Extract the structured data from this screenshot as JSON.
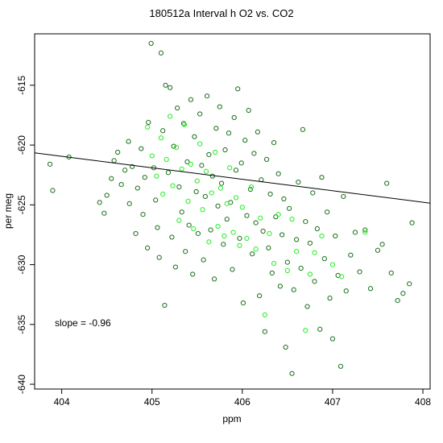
{
  "chart_data": {
    "type": "scatter",
    "title": "180512a   Interval h O2 vs. CO2",
    "xlabel": "ppm",
    "ylabel": "per meg",
    "xlim": [
      403.7,
      408.08
    ],
    "ylim": [
      -640.4,
      -610.7
    ],
    "xticks": [
      404,
      405,
      406,
      407,
      408
    ],
    "yticks": [
      -615,
      -620,
      -625,
      -630,
      -635,
      -640
    ],
    "annotation": "slope =  -0.96",
    "fit_line": {
      "slope": -0.96,
      "intercept": -233.1
    },
    "series": [
      {
        "color": "#1a6e1a",
        "marker": "open-circle",
        "points": [
          [
            403.87,
            -621.6
          ],
          [
            403.9,
            -623.8
          ],
          [
            404.08,
            -621.0
          ],
          [
            404.42,
            -624.8
          ],
          [
            404.47,
            -625.7
          ],
          [
            404.5,
            -624.2
          ],
          [
            404.55,
            -622.8
          ],
          [
            404.58,
            -621.3
          ],
          [
            404.62,
            -620.6
          ],
          [
            404.66,
            -623.3
          ],
          [
            404.7,
            -622.1
          ],
          [
            404.74,
            -619.7
          ],
          [
            404.75,
            -624.9
          ],
          [
            404.78,
            -621.8
          ],
          [
            404.82,
            -627.4
          ],
          [
            404.84,
            -623.6
          ],
          [
            404.88,
            -620.3
          ],
          [
            404.9,
            -625.8
          ],
          [
            404.92,
            -622.7
          ],
          [
            404.95,
            -628.6
          ],
          [
            404.96,
            -618.1
          ],
          [
            404.99,
            -611.5
          ],
          [
            405.02,
            -621.9
          ],
          [
            405.04,
            -624.6
          ],
          [
            405.06,
            -626.9
          ],
          [
            405.08,
            -629.4
          ],
          [
            405.1,
            -612.3
          ],
          [
            405.12,
            -618.8
          ],
          [
            405.14,
            -633.4
          ],
          [
            405.15,
            -615.0
          ],
          [
            405.18,
            -622.3
          ],
          [
            405.2,
            -615.2
          ],
          [
            405.22,
            -627.7
          ],
          [
            405.24,
            -620.1
          ],
          [
            405.26,
            -630.2
          ],
          [
            405.28,
            -616.9
          ],
          [
            405.3,
            -623.5
          ],
          [
            405.33,
            -625.6
          ],
          [
            405.35,
            -618.2
          ],
          [
            405.37,
            -628.9
          ],
          [
            405.39,
            -621.4
          ],
          [
            405.41,
            -626.7
          ],
          [
            405.43,
            -616.2
          ],
          [
            405.45,
            -630.8
          ],
          [
            405.47,
            -619.3
          ],
          [
            405.49,
            -623.9
          ],
          [
            405.51,
            -627.4
          ],
          [
            405.53,
            -617.4
          ],
          [
            405.55,
            -621.7
          ],
          [
            405.57,
            -629.6
          ],
          [
            405.59,
            -624.3
          ],
          [
            405.61,
            -615.9
          ],
          [
            405.63,
            -620.8
          ],
          [
            405.65,
            -627.1
          ],
          [
            405.67,
            -622.6
          ],
          [
            405.69,
            -631.2
          ],
          [
            405.71,
            -618.6
          ],
          [
            405.73,
            -625.1
          ],
          [
            405.75,
            -616.8
          ],
          [
            405.77,
            -623.2
          ],
          [
            405.79,
            -628.3
          ],
          [
            405.81,
            -620.4
          ],
          [
            405.83,
            -626.2
          ],
          [
            405.85,
            -619.0
          ],
          [
            405.87,
            -624.8
          ],
          [
            405.89,
            -630.4
          ],
          [
            405.91,
            -617.7
          ],
          [
            405.93,
            -622.1
          ],
          [
            405.95,
            -615.3
          ],
          [
            405.97,
            -627.8
          ],
          [
            405.99,
            -621.5
          ],
          [
            406.01,
            -633.2
          ],
          [
            406.03,
            -619.6
          ],
          [
            406.05,
            -625.9
          ],
          [
            406.07,
            -617.1
          ],
          [
            406.09,
            -623.7
          ],
          [
            406.11,
            -629.1
          ],
          [
            406.13,
            -620.7
          ],
          [
            406.15,
            -626.5
          ],
          [
            406.17,
            -618.9
          ],
          [
            406.19,
            -632.6
          ],
          [
            406.21,
            -622.9
          ],
          [
            406.23,
            -627.2
          ],
          [
            406.25,
            -635.6
          ],
          [
            406.27,
            -621.2
          ],
          [
            406.29,
            -628.6
          ],
          [
            406.31,
            -624.1
          ],
          [
            406.33,
            -630.7
          ],
          [
            406.35,
            -619.8
          ],
          [
            406.37,
            -626.0
          ],
          [
            406.4,
            -622.4
          ],
          [
            406.42,
            -631.8
          ],
          [
            406.44,
            -627.5
          ],
          [
            406.46,
            -624.5
          ],
          [
            406.48,
            -636.9
          ],
          [
            406.5,
            -629.8
          ],
          [
            406.52,
            -625.3
          ],
          [
            406.55,
            -639.1
          ],
          [
            406.57,
            -632.1
          ],
          [
            406.6,
            -627.9
          ],
          [
            406.62,
            -623.1
          ],
          [
            406.65,
            -630.3
          ],
          [
            406.67,
            -618.7
          ],
          [
            406.7,
            -626.4
          ],
          [
            406.72,
            -633.5
          ],
          [
            406.75,
            -628.2
          ],
          [
            406.78,
            -624.0
          ],
          [
            406.8,
            -631.4
          ],
          [
            406.83,
            -627.0
          ],
          [
            406.86,
            -635.4
          ],
          [
            406.88,
            -622.7
          ],
          [
            406.91,
            -629.5
          ],
          [
            406.94,
            -625.6
          ],
          [
            406.97,
            -632.8
          ],
          [
            407.0,
            -636.2
          ],
          [
            407.03,
            -627.6
          ],
          [
            407.06,
            -630.9
          ],
          [
            407.09,
            -638.5
          ],
          [
            407.12,
            -624.3
          ],
          [
            407.15,
            -632.2
          ],
          [
            407.2,
            -629.2
          ],
          [
            407.25,
            -627.3
          ],
          [
            407.3,
            -630.6
          ],
          [
            407.36,
            -627.1
          ],
          [
            407.42,
            -632.0
          ],
          [
            407.5,
            -628.8
          ],
          [
            407.55,
            -628.3
          ],
          [
            407.6,
            -623.2
          ],
          [
            407.65,
            -630.7
          ],
          [
            407.72,
            -633.0
          ],
          [
            407.78,
            -632.4
          ],
          [
            407.85,
            -631.6
          ],
          [
            407.88,
            -626.5
          ]
        ]
      },
      {
        "color": "#22ee22",
        "marker": "open-circle",
        "points": [
          [
            404.95,
            -618.5
          ],
          [
            405.0,
            -620.9
          ],
          [
            405.05,
            -622.6
          ],
          [
            405.1,
            -619.4
          ],
          [
            405.12,
            -624.1
          ],
          [
            405.16,
            -621.2
          ],
          [
            405.2,
            -617.6
          ],
          [
            405.23,
            -623.4
          ],
          [
            405.27,
            -620.2
          ],
          [
            405.3,
            -626.3
          ],
          [
            405.33,
            -622.0
          ],
          [
            405.36,
            -618.3
          ],
          [
            405.4,
            -624.7
          ],
          [
            405.43,
            -621.6
          ],
          [
            405.46,
            -627.0
          ],
          [
            405.5,
            -623.0
          ],
          [
            405.53,
            -619.9
          ],
          [
            405.56,
            -625.4
          ],
          [
            405.6,
            -622.2
          ],
          [
            405.63,
            -628.1
          ],
          [
            405.66,
            -624.0
          ],
          [
            405.7,
            -620.6
          ],
          [
            405.73,
            -626.8
          ],
          [
            405.76,
            -623.6
          ],
          [
            405.8,
            -627.6
          ],
          [
            405.83,
            -624.9
          ],
          [
            405.86,
            -621.9
          ],
          [
            405.9,
            -627.3
          ],
          [
            405.93,
            -624.4
          ],
          [
            405.97,
            -628.4
          ],
          [
            406.0,
            -625.2
          ],
          [
            406.05,
            -627.8
          ],
          [
            406.1,
            -623.5
          ],
          [
            406.15,
            -628.7
          ],
          [
            406.2,
            -626.1
          ],
          [
            406.25,
            -634.2
          ],
          [
            406.3,
            -627.4
          ],
          [
            406.35,
            -629.9
          ],
          [
            406.4,
            -625.8
          ],
          [
            406.5,
            -630.5
          ],
          [
            406.55,
            -626.2
          ],
          [
            406.6,
            -628.9
          ],
          [
            406.7,
            -635.5
          ],
          [
            406.75,
            -630.8
          ],
          [
            406.8,
            -629.0
          ],
          [
            406.88,
            -627.6
          ],
          [
            407.0,
            -630.0
          ],
          [
            407.1,
            -631.0
          ],
          [
            407.36,
            -627.3
          ]
        ]
      }
    ]
  }
}
